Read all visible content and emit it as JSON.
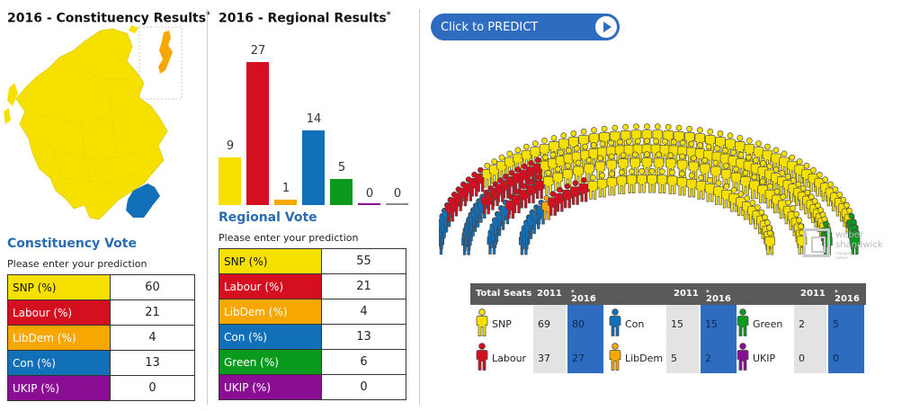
{
  "constituency": {
    "title": "2016 - Constituency Results",
    "title_mark": "*",
    "vote_title": "Constituency Vote",
    "hint": "Please enter your prediction",
    "rows": [
      {
        "label": "SNP (%)",
        "value": "60",
        "color": "#f5e000",
        "text_color": "#111111"
      },
      {
        "label": "Labour (%)",
        "value": "21",
        "color": "#d40f1f",
        "text_color": "#ffffff"
      },
      {
        "label": "LibDem (%)",
        "value": "4",
        "color": "#f7a800",
        "text_color": "#ffffff"
      },
      {
        "label": "Con (%)",
        "value": "13",
        "color": "#1270b8",
        "text_color": "#ffffff"
      },
      {
        "label": "UKIP (%)",
        "value": "0",
        "color": "#8a0e93",
        "text_color": "#ffffff"
      }
    ]
  },
  "regional": {
    "title": "2016 - Regional Results",
    "title_mark": "*",
    "vote_title": "Regional Vote",
    "hint": "Please enter your prediction",
    "bars": [
      {
        "value": 9,
        "label": "9",
        "color": "#f5e000"
      },
      {
        "value": 27,
        "label": "27",
        "color": "#d40f1f"
      },
      {
        "value": 1,
        "label": "1",
        "color": "#f7a800"
      },
      {
        "value": 14,
        "label": "14",
        "color": "#1270b8"
      },
      {
        "value": 5,
        "label": "5",
        "color": "#0a9a1e"
      },
      {
        "value": 0,
        "label": "0",
        "color": "#8a0e93"
      },
      {
        "value": 0,
        "label": "0",
        "color": "#8a8a8a"
      }
    ],
    "rows": [
      {
        "label": "SNP (%)",
        "value": "55",
        "color": "#f5e000",
        "text_color": "#111111"
      },
      {
        "label": "Labour (%)",
        "value": "21",
        "color": "#d40f1f",
        "text_color": "#ffffff"
      },
      {
        "label": "LibDem (%)",
        "value": "4",
        "color": "#f7a800",
        "text_color": "#ffffff"
      },
      {
        "label": "Con (%)",
        "value": "13",
        "color": "#1270b8",
        "text_color": "#ffffff"
      },
      {
        "label": "Green (%)",
        "value": "6",
        "color": "#0a9a1e",
        "text_color": "#ffffff"
      },
      {
        "label": "UKIP (%)",
        "value": "0",
        "color": "#8a0e93",
        "text_color": "#ffffff"
      }
    ]
  },
  "predict_button": {
    "label": "Click to PREDICT",
    "icon": "play-icon"
  },
  "seats": {
    "rows": [
      [
        [
          6,
          "con"
        ],
        [
          4,
          "lab"
        ],
        [
          3,
          "lab"
        ],
        [
          3,
          "snp"
        ],
        [
          5,
          "snp"
        ],
        [
          6,
          "snp"
        ],
        [
          6,
          "snp"
        ],
        [
          7,
          "snp"
        ],
        [
          9,
          "snp"
        ],
        [
          8,
          "snp"
        ],
        [
          4,
          "green"
        ]
      ],
      [
        [
          6,
          "con"
        ],
        [
          3,
          "con"
        ],
        [
          4,
          "lab"
        ],
        [
          4,
          "lab"
        ],
        [
          2,
          "lab"
        ],
        [
          4,
          "snp"
        ],
        [
          7,
          "snp"
        ],
        [
          7,
          "snp"
        ],
        [
          7,
          "snp"
        ],
        [
          9,
          "snp"
        ],
        [
          7,
          "snp"
        ],
        [
          3,
          "green"
        ]
      ],
      [
        [
          2,
          "con"
        ],
        [
          2,
          "con"
        ],
        [
          2,
          "con"
        ],
        [
          3,
          "lab"
        ],
        [
          2,
          "lab"
        ],
        [
          1,
          "snp"
        ],
        [
          5,
          "snp"
        ],
        [
          6,
          "snp"
        ],
        [
          5,
          "snp"
        ],
        [
          6,
          "snp"
        ],
        [
          5,
          "snp"
        ],
        [
          2,
          "snp"
        ]
      ],
      [
        [
          4,
          "con"
        ],
        [
          3,
          "con"
        ],
        [
          1,
          "libdem"
        ],
        [
          2,
          "lab"
        ],
        [
          3,
          "lab"
        ],
        [
          6,
          "snp"
        ],
        [
          6,
          "snp"
        ],
        [
          6,
          "snp"
        ],
        [
          7,
          "snp"
        ]
      ]
    ],
    "colors": {
      "snp": "#f5e000",
      "lab": "#d40f1f",
      "libdem": "#f7a800",
      "con": "#1270b8",
      "green": "#0a9a1e",
      "ukip": "#8a0e93"
    }
  },
  "logo": {
    "line1": "weber",
    "line2": "shandwick",
    "tagline": "engaging. always."
  },
  "seats_table": {
    "header": "Total Seats",
    "col_2011": "2011",
    "col_2016": "2016",
    "mark": "*",
    "bg_2011": "#e3e3e3",
    "bg_2016": "#2e6cc0",
    "groups": [
      [
        {
          "party": "SNP",
          "figure": "snp-figure-icon",
          "color": "#f5e000",
          "v2011": "69",
          "v2016": "80"
        },
        {
          "party": "Labour",
          "figure": "labour-figure-icon",
          "color": "#d40f1f",
          "v2011": "37",
          "v2016": "27"
        }
      ],
      [
        {
          "party": "Con",
          "figure": "con-figure-icon",
          "color": "#1270b8",
          "v2011": "15",
          "v2016": "15"
        },
        {
          "party": "LibDem",
          "figure": "libdem-figure-icon",
          "color": "#f7a800",
          "v2011": "5",
          "v2016": "2"
        }
      ],
      [
        {
          "party": "Green",
          "figure": "green-figure-icon",
          "color": "#0a9a1e",
          "v2011": "2",
          "v2016": "5"
        },
        {
          "party": "UKIP",
          "figure": "ukip-figure-icon",
          "color": "#8a0e93",
          "v2011": "0",
          "v2016": "0"
        }
      ]
    ]
  }
}
